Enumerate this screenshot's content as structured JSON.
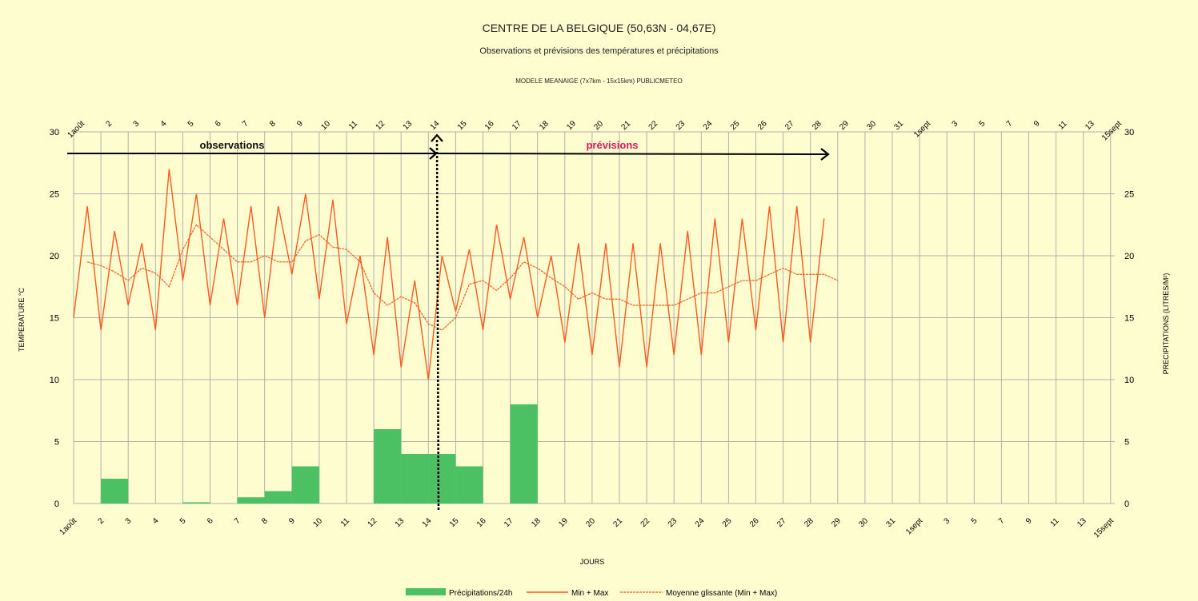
{
  "chart_data": {
    "type": "bar+line",
    "title": "CENTRE DE LA BELGIQUE (50,63N - 04,67E)",
    "subtitle": "Observations et prévisions des températures et précipitations",
    "model": "MODELE MEANAIGE (7x7km - 15x15km) PUBLICMETEO",
    "xlabel": "JOURS",
    "ylabel_left": "TEMPERATURE °C",
    "ylabel_right": "PRECIPITATIONS (LITRES/M²)",
    "ylim": [
      0,
      30
    ],
    "yticks": [
      0,
      5,
      10,
      15,
      20,
      25,
      30
    ],
    "x_tick_labels": [
      "1août",
      "2",
      "3",
      "4",
      "5",
      "6",
      "7",
      "8",
      "9",
      "10",
      "11",
      "12",
      "13",
      "14",
      "15",
      "16",
      "17",
      "18",
      "19",
      "20",
      "21",
      "22",
      "23",
      "24",
      "25",
      "26",
      "27",
      "28",
      "29",
      "30",
      "31",
      "1sept",
      "3",
      "5",
      "7",
      "9",
      "11",
      "13",
      "15sept"
    ],
    "annotations": {
      "observations": "observations",
      "previsions": "prévisions"
    },
    "colors": {
      "precip": "#4cc164",
      "minmax": "#ff5a1f",
      "moyenne": "#ff5a1f",
      "arrow": "#000000",
      "grid": "#b0b0b0",
      "background": "#fefdcf"
    },
    "legend": [
      "Précipitations/24h",
      "Min + Max",
      "Moyenne glissante (Min + Max)"
    ],
    "legend_position": "bottom",
    "precip": [
      {
        "day": 2,
        "value": 2
      },
      {
        "day": 5,
        "value": 0.1
      },
      {
        "day": 7,
        "value": 0.5
      },
      {
        "day": 8,
        "value": 1
      },
      {
        "day": 9,
        "value": 3
      },
      {
        "day": 12,
        "value": 6
      },
      {
        "day": 13,
        "value": 4
      },
      {
        "day": 14,
        "value": 4
      },
      {
        "day": 15,
        "value": 3
      },
      {
        "day": 17,
        "value": 8
      }
    ],
    "minmax": [
      15,
      24,
      14,
      22,
      16,
      21,
      14,
      27,
      18,
      25,
      16,
      23,
      16,
      24,
      15,
      24,
      18.5,
      25,
      16.5,
      24.5,
      14.5,
      20,
      12,
      21.5,
      11,
      18,
      10,
      20,
      15.5,
      20.5,
      14,
      22.5,
      16.5,
      21.5,
      15,
      20,
      13,
      21,
      12,
      21,
      11,
      21,
      11,
      21,
      12,
      22,
      12,
      23,
      13,
      23,
      14,
      24,
      13,
      24,
      13,
      23
    ],
    "moyenne": [
      {
        "day": 1.5,
        "value": 19.5
      },
      {
        "day": 2,
        "value": 19.2
      },
      {
        "day": 2.5,
        "value": 18.7
      },
      {
        "day": 3,
        "value": 18.0
      },
      {
        "day": 3.5,
        "value": 19.0
      },
      {
        "day": 4,
        "value": 18.6
      },
      {
        "day": 4.5,
        "value": 17.5
      },
      {
        "day": 5,
        "value": 20.5
      },
      {
        "day": 5.5,
        "value": 22.5
      },
      {
        "day": 6,
        "value": 21.5
      },
      {
        "day": 6.5,
        "value": 20.5
      },
      {
        "day": 7,
        "value": 19.5
      },
      {
        "day": 7.5,
        "value": 19.5
      },
      {
        "day": 8,
        "value": 20.0
      },
      {
        "day": 8.5,
        "value": 19.5
      },
      {
        "day": 9,
        "value": 19.5
      },
      {
        "day": 9.5,
        "value": 21.2
      },
      {
        "day": 10,
        "value": 21.7
      },
      {
        "day": 10.5,
        "value": 20.7
      },
      {
        "day": 11,
        "value": 20.5
      },
      {
        "day": 11.5,
        "value": 19.5
      },
      {
        "day": 12,
        "value": 17.0
      },
      {
        "day": 12.5,
        "value": 16.0
      },
      {
        "day": 13,
        "value": 16.7
      },
      {
        "day": 13.5,
        "value": 16.2
      },
      {
        "day": 14,
        "value": 14.5
      },
      {
        "day": 14.5,
        "value": 14.0
      },
      {
        "day": 15,
        "value": 15.0
      },
      {
        "day": 15.5,
        "value": 17.7
      },
      {
        "day": 16,
        "value": 18.0
      },
      {
        "day": 16.5,
        "value": 17.2
      },
      {
        "day": 17,
        "value": 18.2
      },
      {
        "day": 17.5,
        "value": 19.5
      },
      {
        "day": 18,
        "value": 19.0
      },
      {
        "day": 18.5,
        "value": 18.2
      },
      {
        "day": 19,
        "value": 17.5
      },
      {
        "day": 19.5,
        "value": 16.5
      },
      {
        "day": 20,
        "value": 17.0
      },
      {
        "day": 20.5,
        "value": 16.5
      },
      {
        "day": 21,
        "value": 16.5
      },
      {
        "day": 21.5,
        "value": 16.0
      },
      {
        "day": 22,
        "value": 16.0
      },
      {
        "day": 22.5,
        "value": 16.0
      },
      {
        "day": 23,
        "value": 16.0
      },
      {
        "day": 23.5,
        "value": 16.5
      },
      {
        "day": 24,
        "value": 17.0
      },
      {
        "day": 24.5,
        "value": 17.0
      },
      {
        "day": 25,
        "value": 17.5
      },
      {
        "day": 25.5,
        "value": 18.0
      },
      {
        "day": 26,
        "value": 18.0
      },
      {
        "day": 26.5,
        "value": 18.5
      },
      {
        "day": 27,
        "value": 19.0
      },
      {
        "day": 27.5,
        "value": 18.5
      },
      {
        "day": 28,
        "value": 18.5
      },
      {
        "day": 28.5,
        "value": 18.5
      },
      {
        "day": 29,
        "value": 18.0
      }
    ]
  }
}
